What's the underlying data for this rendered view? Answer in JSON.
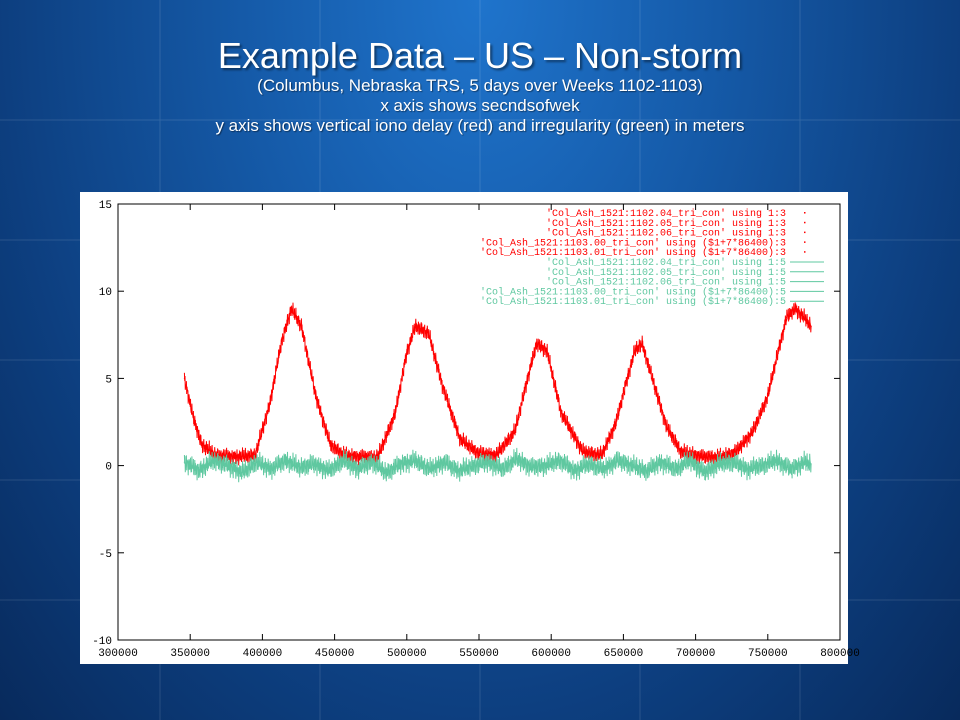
{
  "slide": {
    "title": "Example Data – US – Non-storm",
    "subtitle_lines": [
      "(Columbus, Nebraska TRS, 5 days over Weeks 1102-1103)",
      "x axis shows secndsofwek",
      "y axis shows vertical iono delay (red) and irregularity (green) in meters"
    ]
  },
  "colors": {
    "delay": "#ff0000",
    "irregularity": "#5fc8a0",
    "background_top": "#1f74cc",
    "background_bottom": "#082a5c"
  },
  "chart_data": {
    "type": "line",
    "xlim": [
      300000,
      800000
    ],
    "ylim": [
      -10,
      15
    ],
    "x_ticks": [
      300000,
      350000,
      400000,
      450000,
      500000,
      550000,
      600000,
      650000,
      700000,
      750000,
      800000
    ],
    "y_ticks": [
      -10,
      -5,
      0,
      5,
      10,
      15
    ],
    "x_tick_labels": [
      "300000",
      "350000",
      "400000",
      "450000",
      "500000",
      "550000",
      "600000",
      "650000",
      "700000",
      "750000",
      "800000"
    ],
    "y_tick_labels": [
      "-10",
      "-5",
      "0",
      "5",
      "10",
      "15"
    ],
    "legend_position": "top-right",
    "legend": [
      {
        "label": "'Col_Ash_1521:1102.04_tri_con' using 1:3",
        "series": "delay"
      },
      {
        "label": "'Col_Ash_1521:1102.05_tri_con' using 1:3",
        "series": "delay"
      },
      {
        "label": "'Col_Ash_1521:1102.06_tri_con' using 1:3",
        "series": "delay"
      },
      {
        "label": "'Col_Ash_1521:1103.00_tri_con' using ($1+7*86400):3",
        "series": "delay"
      },
      {
        "label": "'Col_Ash_1521:1103.01_tri_con' using ($1+7*86400):3",
        "series": "delay"
      },
      {
        "label": "'Col_Ash_1521:1102.04_tri_con' using 1:5",
        "series": "irregularity"
      },
      {
        "label": "'Col_Ash_1521:1102.05_tri_con' using 1:5",
        "series": "irregularity"
      },
      {
        "label": "'Col_Ash_1521:1102.06_tri_con' using 1:5",
        "series": "irregularity"
      },
      {
        "label": "'Col_Ash_1521:1103.00_tri_con' using ($1+7*86400):5",
        "series": "irregularity"
      },
      {
        "label": "'Col_Ash_1521:1103.01_tri_con' using ($1+7*86400):5",
        "series": "irregularity"
      }
    ],
    "series": [
      {
        "key": "delay",
        "x": [
          346000,
          352000,
          358000,
          368000,
          380000,
          395000,
          405000,
          413000,
          420000,
          427000,
          437000,
          447000,
          457000,
          467000,
          480000,
          492000,
          500000,
          506000,
          515000,
          525000,
          537000,
          550000,
          562000,
          575000,
          583000,
          590000,
          597000,
          607000,
          622000,
          635000,
          645000,
          652000,
          658000,
          663000,
          670000,
          680000,
          690000,
          705000,
          718000,
          728000,
          740000,
          750000,
          757000,
          763000,
          769000,
          775000,
          780000
        ],
        "y": [
          5.0,
          2.8,
          1.2,
          0.6,
          0.5,
          0.6,
          3.5,
          7.0,
          9.0,
          8.0,
          4.0,
          1.2,
          0.6,
          0.5,
          0.5,
          3.0,
          6.5,
          8.0,
          7.6,
          4.5,
          1.5,
          0.7,
          0.6,
          2.0,
          4.8,
          7.0,
          6.6,
          3.0,
          0.8,
          0.6,
          2.5,
          4.8,
          6.6,
          7.0,
          5.0,
          2.2,
          0.8,
          0.5,
          0.5,
          0.8,
          2.0,
          4.0,
          6.5,
          8.5,
          9.0,
          8.5,
          8.0
        ]
      },
      {
        "key": "irregularity",
        "x": [
          346000,
          356000,
          366000,
          376000,
          386000,
          396000,
          406000,
          416000,
          426000,
          436000,
          446000,
          456000,
          466000,
          476000,
          486000,
          496000,
          506000,
          516000,
          526000,
          536000,
          546000,
          556000,
          566000,
          576000,
          586000,
          596000,
          606000,
          616000,
          626000,
          636000,
          646000,
          656000,
          666000,
          676000,
          686000,
          696000,
          706000,
          716000,
          726000,
          736000,
          746000,
          756000,
          766000,
          776000,
          780000
        ],
        "y": [
          0.2,
          -0.3,
          0.3,
          0.0,
          -0.4,
          0.2,
          -0.2,
          0.3,
          -0.1,
          0.1,
          -0.3,
          0.3,
          -0.2,
          0.2,
          -0.4,
          0.1,
          0.3,
          -0.2,
          0.2,
          -0.3,
          0.0,
          0.2,
          -0.2,
          0.4,
          -0.1,
          0.0,
          0.3,
          -0.3,
          0.1,
          -0.2,
          0.3,
          0.0,
          -0.3,
          0.2,
          -0.2,
          0.3,
          -0.4,
          0.1,
          0.2,
          -0.2,
          0.0,
          0.3,
          -0.2,
          0.2,
          0.1
        ]
      }
    ]
  }
}
